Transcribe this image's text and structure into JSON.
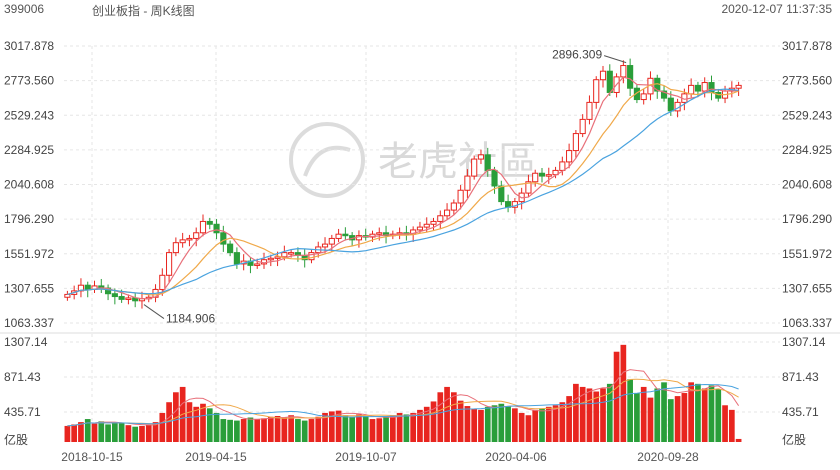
{
  "header": {
    "code": "399006",
    "title": "创业板指 - 周K线图",
    "datetime": "2020-12-07 11:37:35"
  },
  "watermark": {
    "text": "老虎社區"
  },
  "colors": {
    "up": "#e8251f",
    "down": "#2a9e3a",
    "ma_short": "#e8707a",
    "ma_mid": "#f0a94a",
    "ma_long": "#4aa3df"
  },
  "chart_data": [
    {
      "type": "candlestick",
      "title": "",
      "y_ticks": [
        "3017.878",
        "2773.560",
        "2529.243",
        "2284.925",
        "2040.608",
        "1796.290",
        "1551.972",
        "1307.655",
        "1063.337"
      ],
      "ylim": [
        1063.337,
        3017.878
      ],
      "x_ticks": [
        "2018-10-15",
        "2019-04-15",
        "2019-10-07",
        "2020-04-06",
        "2020-09-28"
      ],
      "annotations": [
        {
          "label": "2896.309",
          "kind": "high"
        },
        {
          "label": "1184.906",
          "kind": "low"
        }
      ],
      "close_series": [
        1265,
        1290,
        1330,
        1300,
        1325,
        1310,
        1270,
        1250,
        1230,
        1240,
        1220,
        1235,
        1245,
        1300,
        1400,
        1560,
        1630,
        1650,
        1660,
        1700,
        1780,
        1760,
        1700,
        1620,
        1560,
        1480,
        1500,
        1470,
        1480,
        1510,
        1520,
        1530,
        1560,
        1560,
        1540,
        1510,
        1560,
        1600,
        1620,
        1660,
        1690,
        1680,
        1650,
        1680,
        1670,
        1690,
        1700,
        1680,
        1690,
        1700,
        1690,
        1720,
        1740,
        1760,
        1780,
        1820,
        1860,
        1910,
        2000,
        2100,
        2220,
        2250,
        2140,
        2030,
        1920,
        1880,
        1920,
        1980,
        2060,
        2120,
        2100,
        2110,
        2140,
        2200,
        2280,
        2400,
        2500,
        2620,
        2780,
        2840,
        2690,
        2800,
        2880,
        2720,
        2640,
        2680,
        2790,
        2700,
        2650,
        2560,
        2620,
        2680,
        2740,
        2700,
        2760,
        2690,
        2650,
        2700,
        2720,
        2740
      ],
      "ma_short": "pink",
      "ma_mid": "orange",
      "ma_long": "blue"
    },
    {
      "type": "bar",
      "title": "",
      "y_ticks": [
        "1307.14",
        "871.43",
        "435.71"
      ],
      "ylabel": "亿股",
      "ylim": [
        0,
        1307.14
      ],
      "values": [
        210,
        230,
        260,
        300,
        240,
        270,
        230,
        260,
        250,
        220,
        200,
        210,
        230,
        260,
        380,
        520,
        650,
        720,
        520,
        460,
        500,
        440,
        380,
        300,
        290,
        280,
        300,
        320,
        300,
        310,
        330,
        340,
        320,
        350,
        300,
        280,
        300,
        330,
        380,
        400,
        410,
        350,
        330,
        360,
        340,
        300,
        310,
        320,
        350,
        380,
        360,
        380,
        420,
        460,
        530,
        650,
        720,
        650,
        540,
        470,
        430,
        420,
        460,
        480,
        500,
        470,
        440,
        380,
        350,
        420,
        440,
        460,
        480,
        520,
        600,
        760,
        720,
        700,
        660,
        700,
        760,
        1180,
        1270,
        820,
        640,
        720,
        580,
        700,
        780,
        560,
        600,
        640,
        780,
        760,
        700,
        740,
        690,
        480,
        420,
        40
      ]
    }
  ]
}
